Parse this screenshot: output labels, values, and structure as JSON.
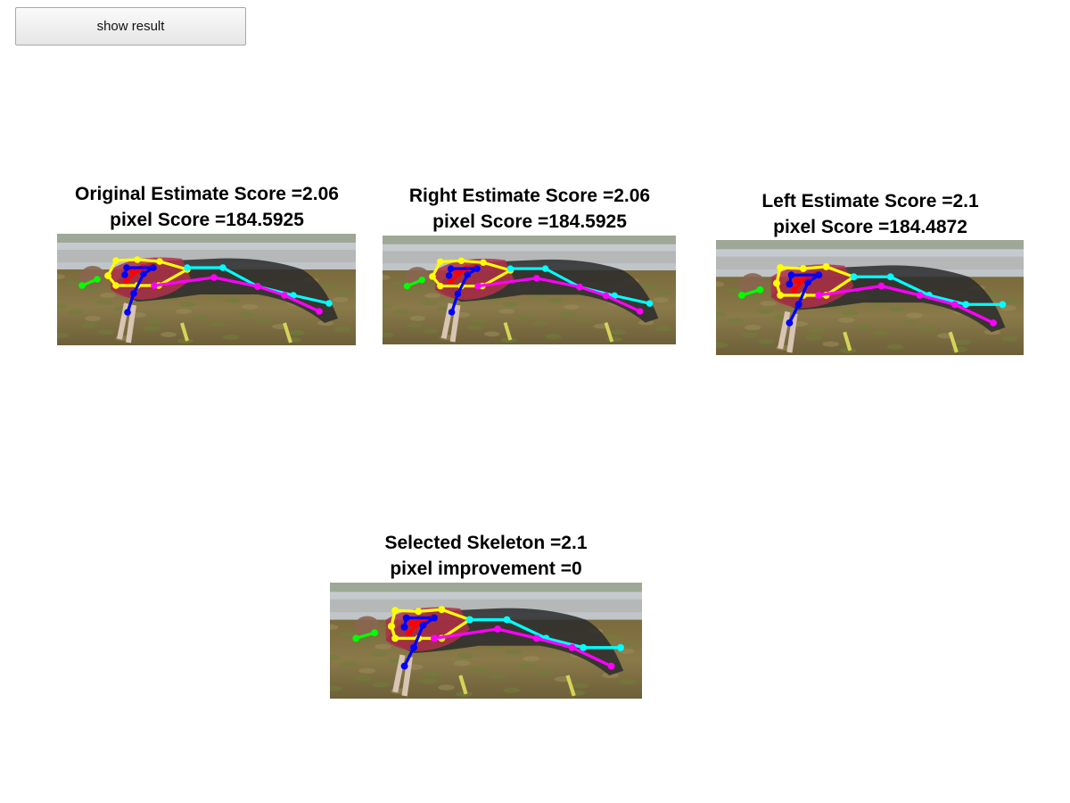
{
  "toolbar": {
    "show_result_label": "show result"
  },
  "panels": [
    {
      "id": "original",
      "title_line1": "Original Estimate Score =2.06",
      "title_line2": "pixel Score =184.5925"
    },
    {
      "id": "right",
      "title_line1": "Right Estimate Score =2.06",
      "title_line2": "pixel Score =184.5925"
    },
    {
      "id": "left",
      "title_line1": "Left Estimate Score =2.1",
      "title_line2": "pixel Score =184.4872"
    },
    {
      "id": "selected",
      "title_line1": "Selected Skeleton =2.1",
      "title_line2": "pixel improvement =0"
    }
  ],
  "skeleton_colors": {
    "head": "#00ff00",
    "torso": "#ffff00",
    "left_arm": "#ff0000",
    "right_arm": "#0000ff",
    "left_leg": "#ff00ff",
    "right_leg": "#00ffff"
  }
}
